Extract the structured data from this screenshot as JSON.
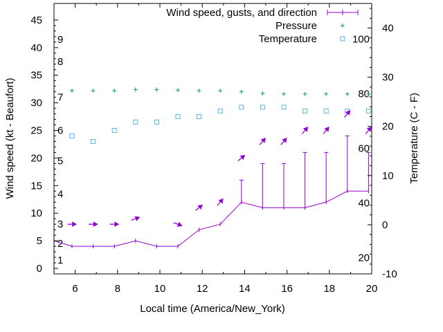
{
  "chart_data": {
    "type": "line",
    "xlabel": "Local time (America/New_York)",
    "ylabel_left": "Wind speed (kt - Beaufort)",
    "ylabel_right": "Temperature (C - F)",
    "xlim": [
      5,
      20
    ],
    "ylim_left": [
      -1,
      48
    ],
    "ylim_right": [
      -10,
      45
    ],
    "x_ticks": [
      "6",
      "8",
      "10",
      "12",
      "14",
      "16",
      "18",
      "20"
    ],
    "y_left_ticks": [
      "0",
      "5",
      "10",
      "15",
      "20",
      "25",
      "30",
      "35",
      "40",
      "45"
    ],
    "y_right_ticks": [
      "-10",
      "0",
      "10",
      "20",
      "30",
      "40"
    ],
    "beaufort_labels": [
      "1",
      "2",
      "3",
      "4",
      "5",
      "6",
      "7",
      "8",
      "9"
    ],
    "fahrenheit_labels": [
      "20",
      "40",
      "60",
      "80",
      "100"
    ],
    "legend": {
      "placement": "top-right",
      "entries": [
        "Wind speed, gusts, and direction",
        "Pressure",
        "Temperature"
      ]
    },
    "colors": {
      "wind": "#9400d3",
      "pressure": "#009e73",
      "temperature": "#56b4e9"
    },
    "wind": {
      "x": [
        5,
        5.85,
        6.85,
        7.85,
        8.85,
        9.85,
        10.85,
        11.85,
        12.85,
        13.85,
        14.85,
        15.85,
        16.85,
        17.85,
        18.85,
        19.85
      ],
      "speed": [
        5,
        4,
        4,
        4,
        5,
        4,
        4,
        7,
        8,
        12,
        11,
        11,
        11,
        12,
        14,
        14
      ],
      "gust": [
        null,
        null,
        null,
        null,
        null,
        null,
        null,
        null,
        null,
        16,
        19,
        19,
        21,
        21,
        24,
        21
      ]
    },
    "wind_direction_arrows": {
      "x": [
        5.85,
        6.85,
        7.85,
        8.85,
        10.85,
        11.85,
        12.85,
        13.85,
        14.85,
        15.85,
        16.85,
        17.85,
        18.85,
        19.85
      ],
      "y": [
        8,
        8,
        8,
        9,
        8,
        11,
        12,
        20,
        23,
        23,
        25,
        25,
        28,
        25
      ],
      "dir_deg": [
        270,
        270,
        270,
        250,
        290,
        230,
        220,
        230,
        220,
        220,
        220,
        220,
        220,
        220
      ]
    },
    "pressure": {
      "x": [
        5.85,
        6.85,
        7.85,
        8.85,
        9.85,
        10.85,
        11.85,
        12.85,
        13.85,
        14.85,
        15.85,
        16.85,
        17.85,
        18.85,
        19.85
      ],
      "y": [
        32.2,
        32.2,
        32.2,
        32.4,
        32.4,
        32.3,
        32.2,
        32.2,
        32.0,
        31.7,
        31.6,
        31.6,
        31.6,
        31.6,
        31.6
      ]
    },
    "temperature": {
      "x": [
        5.85,
        6.85,
        7.85,
        8.85,
        9.85,
        10.85,
        11.85,
        12.85,
        13.85,
        14.85,
        15.85,
        16.85,
        17.85,
        18.85,
        19.85
      ],
      "y": [
        24,
        23,
        25,
        26.5,
        26.5,
        27.5,
        27.5,
        28.5,
        29.2,
        29.2,
        29.2,
        28.5,
        28.5,
        28.5,
        28.5
      ]
    }
  }
}
